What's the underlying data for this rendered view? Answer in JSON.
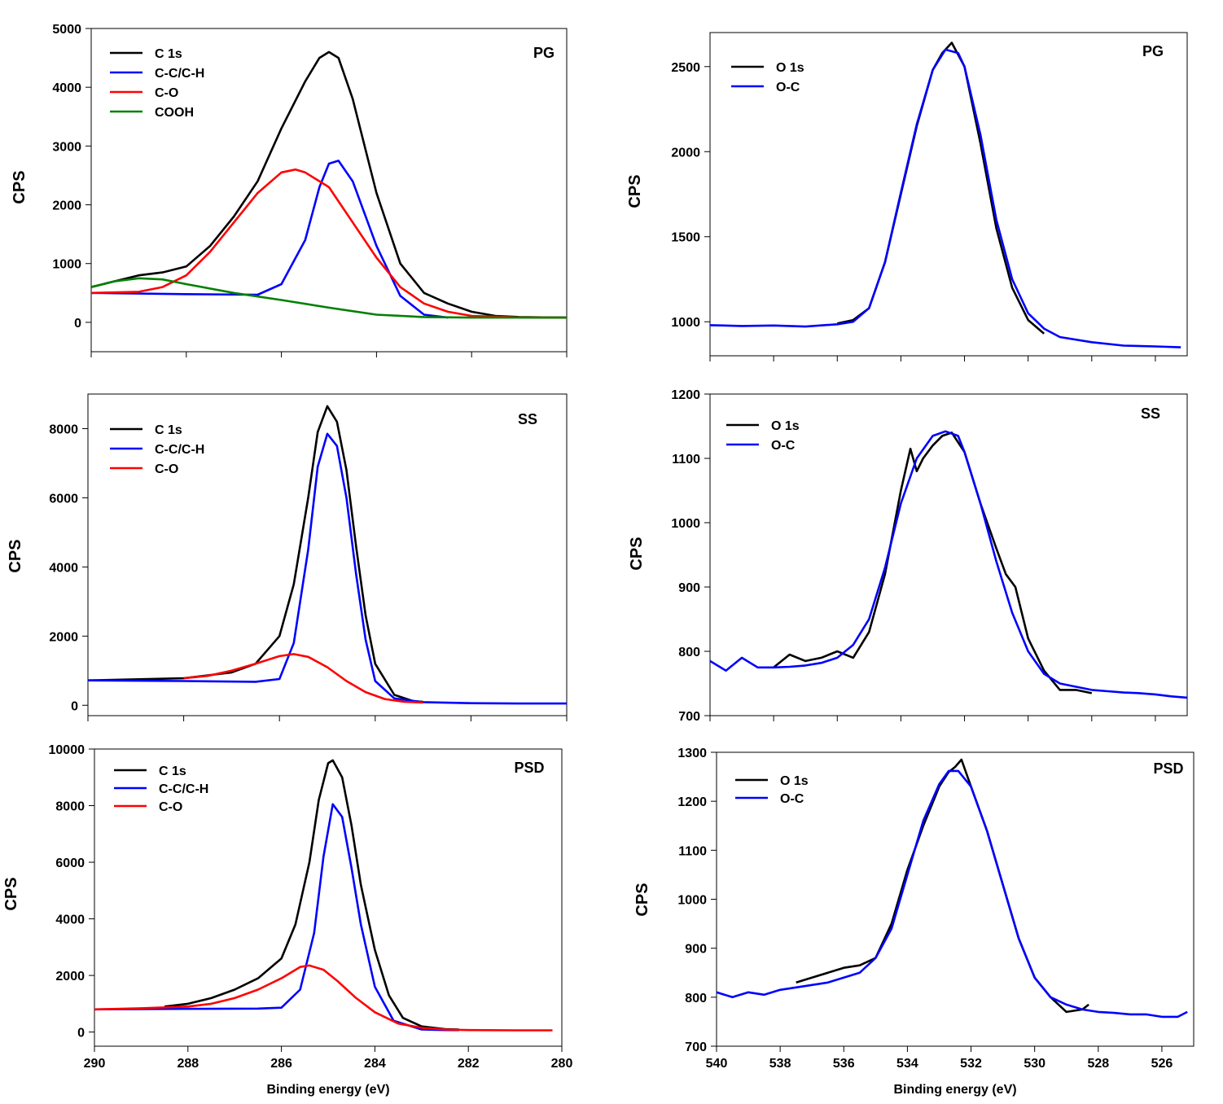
{
  "chart_data": [
    {
      "type": "line",
      "panel": "C 1s / PG",
      "panel_label": "PG",
      "ylabel": "CPS",
      "xlabel": "",
      "xlim": [
        290,
        280
      ],
      "ylim": [
        -500,
        5000
      ],
      "yticks": [
        0,
        1000,
        2000,
        3000,
        4000,
        5000
      ],
      "xticks": [],
      "x_range": [
        290,
        280
      ],
      "series": [
        {
          "name": "C 1s",
          "color": "#000000",
          "x": [
            290,
            289.5,
            289,
            288.5,
            288,
            287.5,
            287,
            286.5,
            286,
            285.5,
            285.2,
            285,
            284.8,
            284.5,
            284,
            283.5,
            283,
            282.5,
            282,
            281.5,
            281,
            280.5,
            280
          ],
          "y": [
            600,
            700,
            800,
            850,
            950,
            1300,
            1800,
            2400,
            3300,
            4100,
            4500,
            4600,
            4500,
            3800,
            2200,
            1000,
            500,
            320,
            180,
            110,
            90,
            85,
            80
          ]
        },
        {
          "name": "C-C/C-H",
          "color": "#0000ff",
          "x": [
            290,
            288,
            286.5,
            286,
            285.5,
            285.2,
            285,
            284.8,
            284.5,
            284,
            283.5,
            283,
            282.5
          ],
          "y": [
            500,
            480,
            470,
            650,
            1400,
            2300,
            2700,
            2750,
            2400,
            1300,
            450,
            130,
            80
          ]
        },
        {
          "name": "C-O",
          "color": "#ff0000",
          "x": [
            290,
            289,
            288.5,
            288,
            287.5,
            287,
            286.5,
            286,
            285.7,
            285.5,
            285,
            284.5,
            284,
            283.5,
            283,
            282.5,
            282,
            281,
            280
          ],
          "y": [
            500,
            520,
            600,
            800,
            1200,
            1700,
            2200,
            2550,
            2600,
            2550,
            2300,
            1700,
            1100,
            600,
            320,
            180,
            110,
            85,
            80
          ]
        },
        {
          "name": "COOH",
          "color": "#008000",
          "x": [
            290,
            289.5,
            289,
            288.5,
            288,
            287,
            286,
            285,
            284,
            283,
            282,
            281,
            280
          ],
          "y": [
            600,
            700,
            750,
            730,
            650,
            500,
            380,
            250,
            130,
            90,
            80,
            80,
            80
          ]
        }
      ]
    },
    {
      "type": "line",
      "panel": "O 1s / PG",
      "panel_label": "PG",
      "ylabel": "CPS",
      "xlabel": "",
      "xlim": [
        540,
        525
      ],
      "ylim": [
        800,
        2700
      ],
      "yticks": [
        1000,
        1500,
        2000,
        2500
      ],
      "xticks": [],
      "x_range": [
        540,
        525
      ],
      "series": [
        {
          "name": "O 1s",
          "color": "#000000",
          "x": [
            536,
            535.5,
            535,
            534.5,
            534,
            533.5,
            533,
            532.7,
            532.4,
            532,
            531.5,
            531,
            530.5,
            530,
            529.5
          ],
          "y": [
            990,
            1010,
            1080,
            1350,
            1750,
            2150,
            2480,
            2580,
            2640,
            2500,
            2050,
            1550,
            1200,
            1010,
            930
          ]
        },
        {
          "name": "O-C",
          "color": "#0000ff",
          "x": [
            540,
            539,
            538,
            537,
            536,
            535.5,
            535,
            534.5,
            534,
            533.5,
            533,
            532.6,
            532.2,
            532,
            531.5,
            531,
            530.5,
            530,
            529.5,
            529,
            528,
            527,
            526,
            525.2
          ],
          "y": [
            980,
            975,
            978,
            972,
            985,
            1000,
            1080,
            1350,
            1760,
            2160,
            2480,
            2600,
            2580,
            2500,
            2100,
            1600,
            1250,
            1050,
            960,
            910,
            880,
            860,
            855,
            850
          ]
        }
      ]
    },
    {
      "type": "line",
      "panel": "C 1s / SS",
      "panel_label": "SS",
      "ylabel": "CPS",
      "xlabel": "",
      "xlim": [
        290,
        280
      ],
      "ylim": [
        -300,
        9000
      ],
      "yticks": [
        0,
        2000,
        4000,
        6000,
        8000
      ],
      "xticks": [],
      "x_range": [
        290,
        280
      ],
      "series": [
        {
          "name": "C 1s",
          "color": "#000000",
          "x": [
            290,
            288,
            287,
            286.5,
            286,
            285.7,
            285.4,
            285.2,
            285,
            284.8,
            284.6,
            284.4,
            284.2,
            284,
            283.6,
            283.2,
            283
          ],
          "y": [
            720,
            780,
            950,
            1200,
            2000,
            3500,
            6000,
            7900,
            8650,
            8200,
            6800,
            4600,
            2600,
            1200,
            300,
            120,
            100
          ]
        },
        {
          "name": "C-C/C-H",
          "color": "#0000ff",
          "x": [
            290,
            288,
            286.5,
            286,
            285.7,
            285.4,
            285.2,
            285,
            284.8,
            284.6,
            284.4,
            284.2,
            284,
            283.6,
            283,
            282,
            281,
            280
          ],
          "y": [
            720,
            700,
            680,
            760,
            1800,
            4500,
            6900,
            7850,
            7500,
            6000,
            3800,
            1900,
            700,
            200,
            90,
            60,
            50,
            50
          ]
        },
        {
          "name": "C-O",
          "color": "#ff0000",
          "x": [
            288,
            287.5,
            287,
            286.5,
            286,
            285.7,
            285.4,
            285,
            284.6,
            284.2,
            283.8,
            283.4,
            283
          ],
          "y": [
            780,
            850,
            1000,
            1200,
            1420,
            1480,
            1400,
            1100,
            700,
            380,
            180,
            100,
            80
          ]
        }
      ]
    },
    {
      "type": "line",
      "panel": "O 1s / SS",
      "panel_label": "SS",
      "ylabel": "CPS",
      "xlabel": "",
      "xlim": [
        540,
        525
      ],
      "ylim": [
        700,
        1200
      ],
      "yticks": [
        700,
        800,
        900,
        1000,
        1100,
        1200
      ],
      "xticks": [],
      "x_range": [
        540,
        525
      ],
      "series": [
        {
          "name": "O 1s",
          "color": "#000000",
          "x": [
            538,
            537.5,
            537,
            536.5,
            536,
            535.5,
            535,
            534.5,
            534,
            533.7,
            533.5,
            533.3,
            533,
            532.7,
            532.4,
            532,
            531.5,
            531,
            530.7,
            530.4,
            530,
            529.5,
            529,
            528.5,
            528
          ],
          "y": [
            775,
            795,
            785,
            790,
            800,
            790,
            830,
            920,
            1050,
            1115,
            1080,
            1100,
            1120,
            1135,
            1140,
            1110,
            1030,
            960,
            920,
            900,
            820,
            770,
            740,
            740,
            735
          ]
        },
        {
          "name": "O-C",
          "color": "#0000ff",
          "x": [
            540,
            539.5,
            539,
            538.5,
            538,
            537.5,
            537,
            536.5,
            536,
            535.5,
            535,
            534.5,
            534,
            533.5,
            533,
            532.6,
            532.2,
            532,
            531.5,
            531,
            530.5,
            530,
            529.5,
            529,
            528.5,
            528,
            527.5,
            527,
            526.5,
            526,
            525.5,
            525
          ],
          "y": [
            785,
            770,
            790,
            775,
            775,
            776,
            778,
            782,
            790,
            810,
            850,
            930,
            1030,
            1100,
            1135,
            1142,
            1135,
            1110,
            1030,
            940,
            860,
            800,
            765,
            750,
            745,
            740,
            738,
            736,
            735,
            733,
            730,
            728
          ]
        }
      ]
    },
    {
      "type": "line",
      "panel": "C 1s / PSD",
      "panel_label": "PSD",
      "ylabel": "CPS",
      "xlabel": "Binding energy (eV)",
      "xlim": [
        290,
        280
      ],
      "ylim": [
        -500,
        10000
      ],
      "yticks": [
        0,
        2000,
        4000,
        6000,
        8000,
        10000
      ],
      "xticks": [
        290,
        288,
        286,
        284,
        282,
        280
      ],
      "x_range": [
        290,
        280
      ],
      "series": [
        {
          "name": "C 1s",
          "color": "#000000",
          "x": [
            288.5,
            288,
            287.5,
            287,
            286.5,
            286,
            285.7,
            285.4,
            285.2,
            285,
            284.9,
            284.7,
            284.5,
            284.3,
            284,
            283.7,
            283.4,
            283,
            282.5,
            282.2
          ],
          "y": [
            900,
            1000,
            1200,
            1500,
            1900,
            2600,
            3800,
            6000,
            8200,
            9500,
            9600,
            9000,
            7300,
            5200,
            2900,
            1300,
            500,
            200,
            100,
            90
          ]
        },
        {
          "name": "C-C/C-H",
          "color": "#0000ff",
          "x": [
            290,
            288,
            286.5,
            286,
            285.6,
            285.3,
            285.1,
            284.9,
            284.7,
            284.5,
            284.3,
            284,
            283.6,
            283,
            282.5,
            282.2
          ],
          "y": [
            800,
            820,
            830,
            860,
            1500,
            3500,
            6200,
            8050,
            7600,
            5800,
            3800,
            1600,
            400,
            90,
            70,
            70
          ]
        },
        {
          "name": "C-O",
          "color": "#ff0000",
          "x": [
            290,
            289,
            288,
            287.5,
            287,
            286.5,
            286,
            285.6,
            285.4,
            285.1,
            284.8,
            284.4,
            284,
            283.5,
            283,
            282.5,
            282,
            281,
            280.2
          ],
          "y": [
            800,
            840,
            900,
            1000,
            1200,
            1500,
            1900,
            2300,
            2350,
            2200,
            1800,
            1200,
            700,
            300,
            150,
            90,
            70,
            60,
            60
          ]
        }
      ]
    },
    {
      "type": "line",
      "panel": "O 1s / PSD",
      "panel_label": "PSD",
      "ylabel": "CPS",
      "xlabel": "Binding energy (eV)",
      "xlim": [
        540,
        525
      ],
      "ylim": [
        700,
        1300
      ],
      "yticks": [
        700,
        800,
        900,
        1000,
        1100,
        1200,
        1300
      ],
      "xticks": [
        540,
        538,
        536,
        534,
        532,
        530,
        528,
        526
      ],
      "x_range": [
        540,
        525
      ],
      "series": [
        {
          "name": "O 1s",
          "color": "#000000",
          "x": [
            537.5,
            537,
            536.5,
            536,
            535.5,
            535,
            534.5,
            534,
            533.5,
            533,
            532.7,
            532.5,
            532.3,
            532,
            531.5,
            531,
            530.5,
            530,
            529.5,
            529,
            528.5,
            528.3
          ],
          "y": [
            830,
            840,
            850,
            860,
            865,
            880,
            950,
            1060,
            1150,
            1230,
            1260,
            1270,
            1285,
            1230,
            1140,
            1030,
            920,
            840,
            800,
            770,
            775,
            785
          ]
        },
        {
          "name": "O-C",
          "color": "#0000ff",
          "x": [
            540,
            539.5,
            539,
            538.5,
            538,
            537.5,
            537,
            536.5,
            536,
            535.5,
            535,
            534.5,
            534,
            533.5,
            533,
            532.7,
            532.4,
            532,
            531.5,
            531,
            530.5,
            530,
            529.5,
            529,
            528.5,
            528,
            527.5,
            527,
            526.5,
            526,
            525.5,
            525.2
          ],
          "y": [
            810,
            800,
            810,
            805,
            815,
            820,
            825,
            830,
            840,
            850,
            880,
            940,
            1050,
            1160,
            1235,
            1262,
            1262,
            1230,
            1140,
            1030,
            920,
            840,
            800,
            785,
            775,
            770,
            768,
            765,
            765,
            760,
            760,
            770
          ]
        }
      ]
    }
  ],
  "legend_entries": [
    "C 1s",
    "C-C/C-H",
    "C-O",
    "COOH",
    "O 1s",
    "O-C"
  ],
  "x_axis_title": "Binding energy (eV)",
  "colors": {
    "C 1s": "#000000",
    "O 1s": "#000000",
    "C-C/C-H": "#0000ff",
    "O-C": "#0000ff",
    "C-O": "#ff0000",
    "COOH": "#008000"
  }
}
